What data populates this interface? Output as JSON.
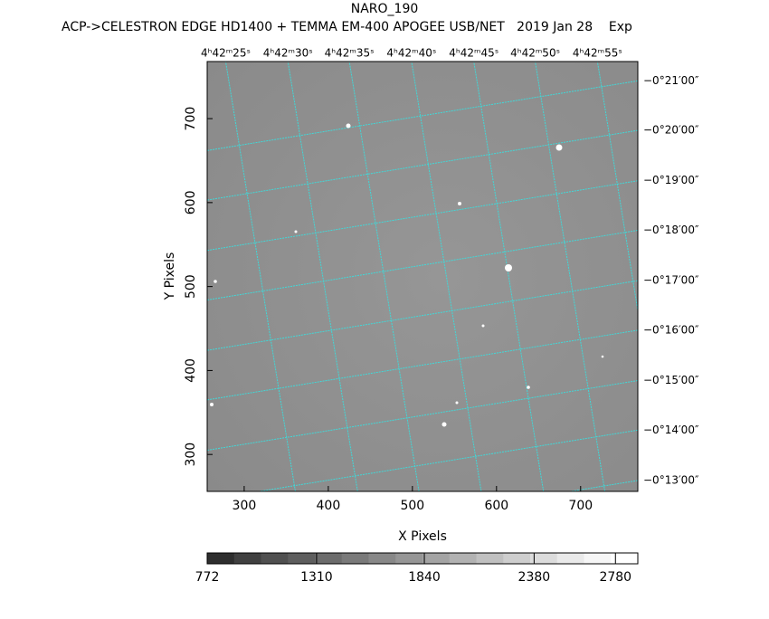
{
  "chart_data": {
    "type": "image",
    "title": "NARO_190",
    "subtitle": "ACP->CELESTRON EDGE HD1400 + TEMMA EM-400 APOGEE USB/NET   2019 Jan 28    Exp",
    "x_label": "X Pixels",
    "y_label": "Y Pixels",
    "xlim": [
      256,
      768
    ],
    "ylim": [
      256,
      768
    ],
    "xticks": [
      300,
      400,
      500,
      600,
      700
    ],
    "yticks": [
      300,
      400,
      500,
      600,
      700
    ],
    "top_ticks": [
      {
        "value": 278,
        "label": "4ʰ42ᵐ25ˢ"
      },
      {
        "value": 352,
        "label": "4ʰ42ᵐ30ˢ"
      },
      {
        "value": 425,
        "label": "4ʰ42ᵐ35ˢ"
      },
      {
        "value": 499,
        "label": "4ʰ42ᵐ40ˢ"
      },
      {
        "value": 573,
        "label": "4ʰ42ᵐ45ˢ"
      },
      {
        "value": 646,
        "label": "4ʰ42ᵐ50ˢ"
      },
      {
        "value": 720,
        "label": "4ʰ42ᵐ55ˢ"
      }
    ],
    "right_ticks": [
      {
        "value": 745,
        "label": "−0°21′00″"
      },
      {
        "value": 686,
        "label": "−0°20′00″"
      },
      {
        "value": 626,
        "label": "−0°19′00″"
      },
      {
        "value": 567,
        "label": "−0°18′00″"
      },
      {
        "value": 507,
        "label": "−0°17′00″"
      },
      {
        "value": 448,
        "label": "−0°16′00″"
      },
      {
        "value": 388,
        "label": "−0°15′00″"
      },
      {
        "value": 329,
        "label": "−0°14′00″"
      },
      {
        "value": 269,
        "label": "−0°13′00″"
      }
    ],
    "grid": true,
    "grid_color": "#40d8d8",
    "colorbar": {
      "lim": [
        772,
        2890
      ],
      "ticks": [
        772,
        1310,
        1840,
        2380,
        2780
      ],
      "colors": [
        "#2e2e2e",
        "#404040",
        "#505050",
        "#5e5e5e",
        "#6c6c6c",
        "#7a7a7a",
        "#888888",
        "#969696",
        "#a4a4a4",
        "#b2b2b2",
        "#c0c0c0",
        "#cecece",
        "#dcdcdc",
        "#eaeaea",
        "#f6f6f6",
        "#ffffff"
      ]
    }
  }
}
